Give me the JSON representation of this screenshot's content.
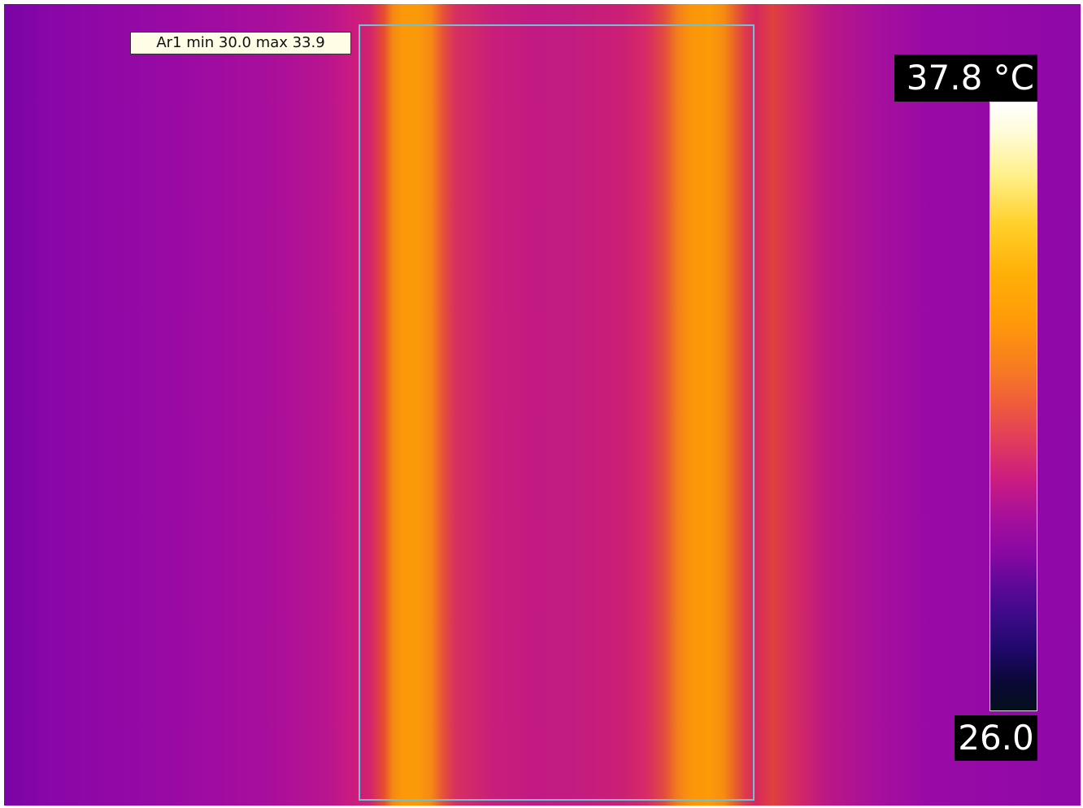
{
  "area": {
    "label": "Ar1 min 30.0 max 33.9",
    "box_color": "#6fc0d8"
  },
  "scale": {
    "max_label": "37.8 °C",
    "min_label": "26.0",
    "max_value": 37.8,
    "min_value": 26.0,
    "unit": "°C",
    "palette": "iron"
  },
  "colors": {
    "hot": "#fc9a08",
    "warm": "#c81a82",
    "cool": "#7a04a6",
    "label_bg": "#fffde6"
  }
}
